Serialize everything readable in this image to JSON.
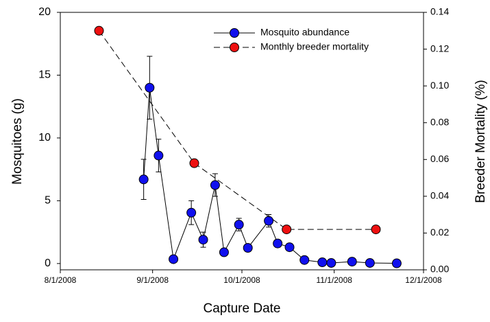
{
  "chart_data": {
    "type": "line",
    "xlabel": "Capture Date",
    "ylabel": "Mosquitoes (g)",
    "y2label": "Breeder Mortality (%)",
    "xlim": [
      "2008-08-01",
      "2008-12-01"
    ],
    "xticks": [
      {
        "value": "2008-08-01",
        "label": "8/1/2008"
      },
      {
        "value": "2008-09-01",
        "label": "9/1/2008"
      },
      {
        "value": "2008-10-01",
        "label": "10/1/2008"
      },
      {
        "value": "2008-11-01",
        "label": "11/1/2008"
      },
      {
        "value": "2008-12-01",
        "label": "12/1/2008"
      }
    ],
    "ylim": [
      -0.5,
      20
    ],
    "yticks": [
      0,
      5,
      10,
      15,
      20
    ],
    "y2lim": [
      0,
      0.14
    ],
    "y2ticks": [
      {
        "value": 0,
        "label": "0.00"
      },
      {
        "value": 0.02,
        "label": "0.02"
      },
      {
        "value": 0.04,
        "label": "0.04"
      },
      {
        "value": 0.06,
        "label": "0.06"
      },
      {
        "value": 0.08,
        "label": "0.08"
      },
      {
        "value": 0.1,
        "label": "0.10"
      },
      {
        "value": 0.12,
        "label": "0.12"
      },
      {
        "value": 0.14,
        "label": "0.14"
      }
    ],
    "legend": "upper right",
    "series": [
      {
        "name": "Mosquito abundance",
        "color": "#1010ee",
        "line_style": "solid",
        "x": [
          "2008-08-29",
          "2008-08-31",
          "2008-09-03",
          "2008-09-08",
          "2008-09-14",
          "2008-09-18",
          "2008-09-22",
          "2008-09-25",
          "2008-09-30",
          "2008-10-03",
          "2008-10-10",
          "2008-10-13",
          "2008-10-17",
          "2008-10-22",
          "2008-10-28",
          "2008-10-31",
          "2008-11-07",
          "2008-11-13",
          "2008-11-22"
        ],
        "values": [
          6.7,
          14.0,
          8.6,
          0.35,
          4.05,
          1.9,
          6.25,
          0.9,
          3.1,
          1.25,
          3.4,
          1.6,
          1.3,
          0.28,
          0.1,
          0.05,
          0.15,
          0.05,
          0.02
        ],
        "errors": [
          1.6,
          2.5,
          1.3,
          0,
          0.95,
          0.6,
          0.9,
          0,
          0.5,
          0.3,
          0.5,
          0.3,
          0.3,
          0,
          0,
          0,
          0,
          0,
          0
        ]
      },
      {
        "name": "Monthly breeder mortality",
        "color": "#ee1010",
        "line_style": "dashed",
        "axis": "y2",
        "x": [
          "2008-08-14",
          "2008-09-15",
          "2008-10-16",
          "2008-11-15"
        ],
        "values": [
          0.13,
          0.058,
          0.022,
          0.022
        ]
      }
    ]
  }
}
